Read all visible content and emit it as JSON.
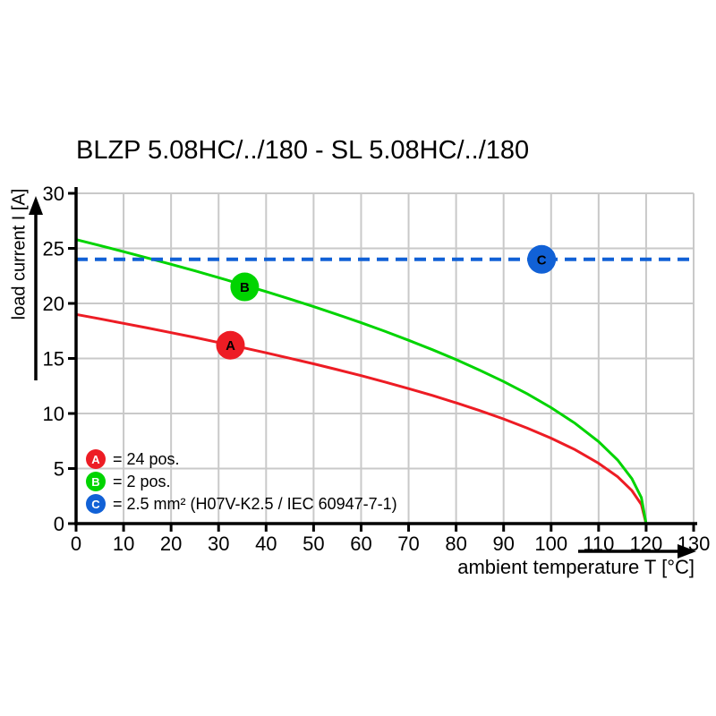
{
  "title": "BLZP 5.08HC/../180 - SL 5.08HC/../180",
  "colors": {
    "series_a_red": "#ed1c24",
    "series_b_green": "#00d400",
    "series_c_blue": "#1161d6",
    "grid": "#c9c9c9",
    "axis": "#000000"
  },
  "chart_data": {
    "type": "line",
    "title": "BLZP 5.08HC/../180 - SL 5.08HC/../180",
    "xlabel": "ambient temperature T [°C]",
    "ylabel": "load current I [A]",
    "xlim": [
      0,
      130
    ],
    "ylim": [
      0,
      30
    ],
    "x_ticks": [
      0,
      10,
      20,
      30,
      40,
      50,
      60,
      70,
      80,
      90,
      100,
      110,
      120,
      130
    ],
    "y_ticks": [
      0,
      5,
      10,
      15,
      20,
      25,
      30
    ],
    "grid": true,
    "legend_position": "lower-left",
    "series": [
      {
        "name": "A",
        "label": "= 24 pos.",
        "color": "#ed1c24",
        "style": "solid",
        "points": [
          [
            0,
            19.0
          ],
          [
            5,
            18.6
          ],
          [
            10,
            18.19
          ],
          [
            15,
            17.77
          ],
          [
            20,
            17.34
          ],
          [
            25,
            16.91
          ],
          [
            30,
            16.45
          ],
          [
            35,
            15.99
          ],
          [
            40,
            15.51
          ],
          [
            45,
            15.02
          ],
          [
            50,
            14.51
          ],
          [
            55,
            13.98
          ],
          [
            60,
            13.44
          ],
          [
            65,
            12.86
          ],
          [
            70,
            12.26
          ],
          [
            75,
            11.64
          ],
          [
            80,
            10.97
          ],
          [
            85,
            10.26
          ],
          [
            90,
            9.5
          ],
          [
            95,
            8.67
          ],
          [
            100,
            7.76
          ],
          [
            105,
            6.72
          ],
          [
            110,
            5.48
          ],
          [
            114,
            4.25
          ],
          [
            117,
            3.0
          ],
          [
            119,
            1.73
          ],
          [
            120,
            0
          ]
        ],
        "marker": {
          "x": 32.5,
          "y": 16.2
        }
      },
      {
        "name": "B",
        "label": "= 2 pos.",
        "color": "#00d400",
        "style": "solid",
        "points": [
          [
            0,
            25.8
          ],
          [
            5,
            25.26
          ],
          [
            10,
            24.7
          ],
          [
            15,
            24.13
          ],
          [
            20,
            23.55
          ],
          [
            25,
            22.96
          ],
          [
            30,
            22.34
          ],
          [
            35,
            21.71
          ],
          [
            40,
            21.07
          ],
          [
            45,
            20.4
          ],
          [
            50,
            19.71
          ],
          [
            55,
            18.99
          ],
          [
            60,
            18.24
          ],
          [
            65,
            17.47
          ],
          [
            70,
            16.65
          ],
          [
            75,
            15.8
          ],
          [
            80,
            14.9
          ],
          [
            85,
            13.93
          ],
          [
            90,
            12.9
          ],
          [
            95,
            11.78
          ],
          [
            100,
            10.53
          ],
          [
            105,
            9.12
          ],
          [
            110,
            7.45
          ],
          [
            114,
            5.77
          ],
          [
            117,
            4.08
          ],
          [
            119,
            2.36
          ],
          [
            120,
            0
          ]
        ],
        "marker": {
          "x": 35.5,
          "y": 21.5
        }
      },
      {
        "name": "C",
        "label": "= 2.5 mm² (H07V-K2.5 / IEC 60947-7-1)",
        "color": "#1161d6",
        "style": "dashed",
        "points": [
          [
            0,
            24
          ],
          [
            130,
            24
          ]
        ],
        "marker": {
          "x": 98,
          "y": 24
        }
      }
    ]
  }
}
